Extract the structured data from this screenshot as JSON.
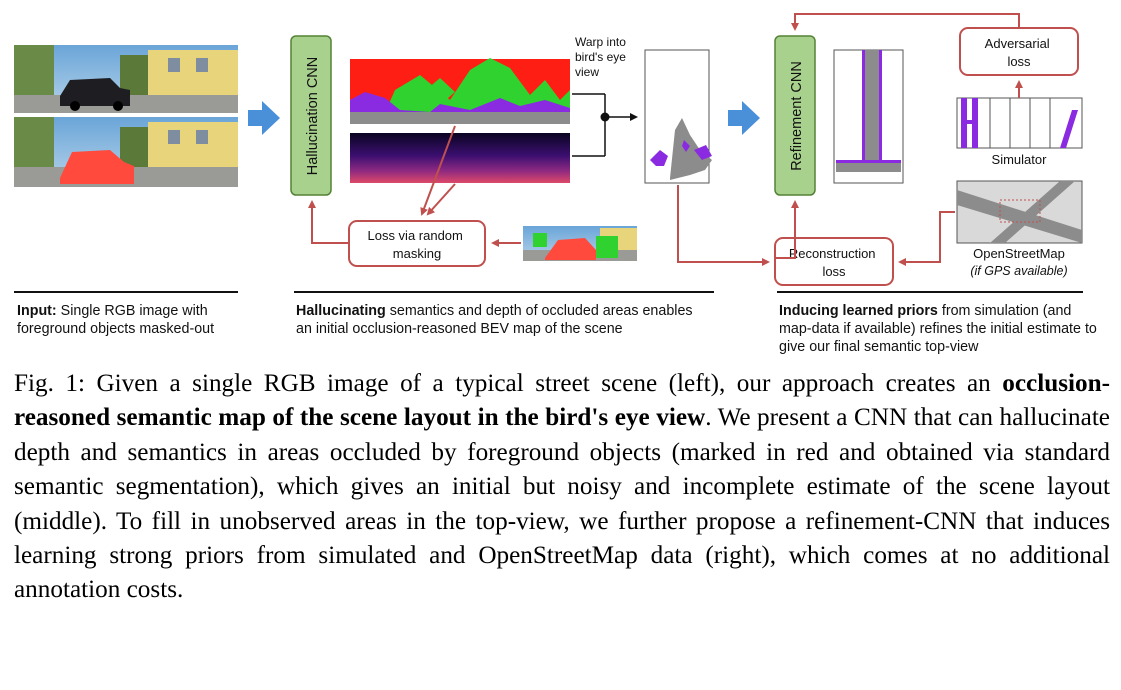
{
  "figure": {
    "hallucination_cnn": "Hallucination CNN",
    "refinement_cnn": "Refinement CNN",
    "warp_label": [
      "Warp into",
      "bird's eye",
      "view"
    ],
    "loss_random_masking": [
      "Loss via random",
      "masking"
    ],
    "reconstruction_loss": [
      "Reconstruction",
      "loss"
    ],
    "adversarial_loss": [
      "Adversarial",
      "loss"
    ],
    "simulator": "Simulator",
    "openstreetmap": "OpenStreetMap",
    "gps_note": "(if GPS available)",
    "colors": {
      "cnn_fill": "#a9d18e",
      "cnn_border": "#548235",
      "loss_border": "#c0504d",
      "arrow_red": "#c0504d",
      "arrow_blue": "#4a90d9"
    }
  },
  "descriptions": {
    "input_bold": "Input:",
    "input_rest": " Single RGB image with foreground objects masked-out",
    "halluc_bold": "Hallucinating",
    "halluc_rest": " semantics and depth of occluded areas enables an initial occlusion-reasoned BEV map of the scene",
    "prior_bold": "Inducing learned priors",
    "prior_rest": " from simulation (and map-data if available) refines the initial estimate to give our final semantic top-view"
  },
  "caption": {
    "lead": "Fig. 1: Given a single RGB image of a typical street scene (left), our approach creates an ",
    "bold": "occlusion-reasoned semantic map of the scene layout in the bird's eye view",
    "rest": ". We present a CNN that can hallucinate depth and semantics in areas occluded by foreground objects (marked in red and obtained via standard semantic segmentation), which gives an initial but noisy and incomplete estimate of the scene layout (middle). To fill in unobserved areas in the top-view, we further propose a refinement-CNN that induces learning strong priors from simulated and OpenStreetMap data (right), which comes at no additional annotation costs."
  }
}
